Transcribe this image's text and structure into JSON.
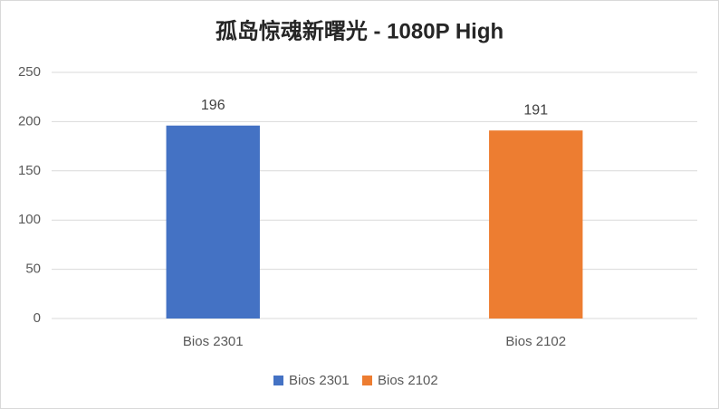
{
  "chart_data": {
    "type": "bar",
    "title": "孤岛惊魂新曙光 - 1080P High",
    "categories": [
      "Bios 2301",
      "Bios 2102"
    ],
    "values": [
      196,
      191
    ],
    "colors": [
      "#4472c4",
      "#ed7d31"
    ],
    "ylim": [
      0,
      250
    ],
    "yticks": [
      0,
      50,
      100,
      150,
      200,
      250
    ],
    "grid": true,
    "legend": "bottom"
  }
}
